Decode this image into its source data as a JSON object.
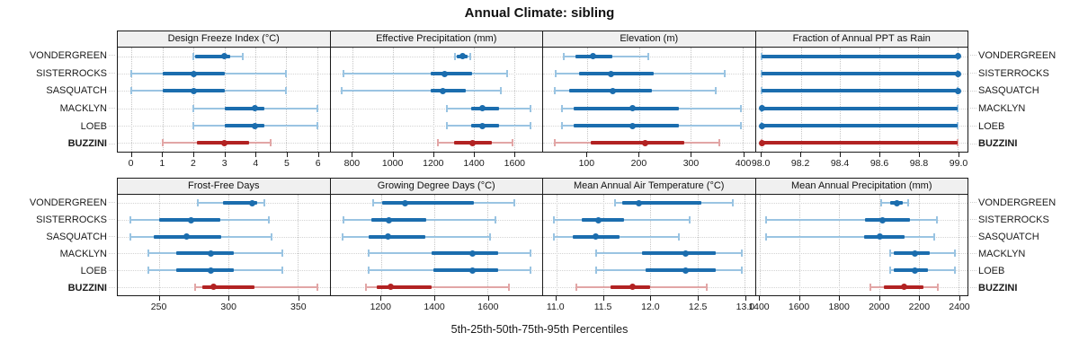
{
  "title": "Annual Climate: sibling",
  "caption": "5th-25th-50th-75th-95th Percentiles",
  "sites": [
    "VONDERGREEN",
    "SISTERROCKS",
    "SASQUATCH",
    "MACKLYN",
    "LOEB",
    "BUZZINI"
  ],
  "highlight_site": "BUZZINI",
  "colors": {
    "series_primary": "#1b6dae",
    "series_primary_light": "#9ac4e2",
    "highlight": "#b22222",
    "highlight_light": "#e2a6a6",
    "strip_bg": "#f0f0f0",
    "border": "#1a1a1a",
    "grid": "#c6c6c6"
  },
  "chart_data": [
    {
      "type": "interval",
      "row": 1,
      "title": "Design Freeze Index (°C)",
      "domain": [
        -0.45,
        6.4
      ],
      "ticks": [
        {
          "v": 0,
          "label": "0"
        },
        {
          "v": 1,
          "label": "1"
        },
        {
          "v": 2,
          "label": "2"
        },
        {
          "v": 3,
          "label": "3"
        },
        {
          "v": 4,
          "label": "4"
        },
        {
          "v": 5,
          "label": "5"
        },
        {
          "v": 6,
          "label": "6"
        }
      ],
      "percentiles": [
        "5th",
        "25th",
        "50th",
        "75th",
        "95th"
      ],
      "series": [
        {
          "name": "VONDERGREEN",
          "p": [
            2.0,
            2.05,
            3.0,
            3.2,
            3.6
          ]
        },
        {
          "name": "SISTERROCKS",
          "p": [
            0.0,
            1.0,
            2.0,
            3.0,
            5.0
          ]
        },
        {
          "name": "SASQUATCH",
          "p": [
            0.0,
            1.0,
            2.0,
            3.0,
            5.0
          ]
        },
        {
          "name": "MACKLYN",
          "p": [
            2.0,
            3.0,
            4.0,
            4.3,
            6.0
          ]
        },
        {
          "name": "LOEB",
          "p": [
            2.0,
            3.0,
            4.0,
            4.3,
            6.0
          ]
        },
        {
          "name": "BUZZINI",
          "p": [
            1.0,
            2.1,
            3.0,
            3.8,
            4.5
          ]
        }
      ]
    },
    {
      "type": "interval",
      "row": 1,
      "title": "Effective Precipitation (mm)",
      "domain": [
        690,
        1740
      ],
      "ticks": [
        {
          "v": 800,
          "label": "800"
        },
        {
          "v": 1000,
          "label": "1000"
        },
        {
          "v": 1200,
          "label": "1200"
        },
        {
          "v": 1400,
          "label": "1400"
        },
        {
          "v": 1600,
          "label": "1600"
        }
      ],
      "percentiles": [
        "5th",
        "25th",
        "50th",
        "75th",
        "95th"
      ],
      "series": [
        {
          "name": "VONDERGREEN",
          "p": [
            1307,
            1317,
            1347,
            1370,
            1383
          ]
        },
        {
          "name": "SISTERROCKS",
          "p": [
            756,
            1187,
            1257,
            1391,
            1564
          ]
        },
        {
          "name": "SASQUATCH",
          "p": [
            747,
            1187,
            1249,
            1360,
            1534
          ]
        },
        {
          "name": "MACKLYN",
          "p": [
            1267,
            1387,
            1444,
            1524,
            1680
          ]
        },
        {
          "name": "LOEB",
          "p": [
            1267,
            1387,
            1444,
            1524,
            1680
          ]
        },
        {
          "name": "BUZZINI",
          "p": [
            1222,
            1302,
            1396,
            1489,
            1591
          ]
        }
      ]
    },
    {
      "type": "interval",
      "row": 1,
      "title": "Elevation (m)",
      "domain": [
        15,
        424
      ],
      "ticks": [
        {
          "v": 100,
          "label": "100"
        },
        {
          "v": 200,
          "label": "200"
        },
        {
          "v": 300,
          "label": "300"
        },
        {
          "v": 400,
          "label": "400"
        }
      ],
      "percentiles": [
        "5th",
        "25th",
        "50th",
        "75th",
        "95th"
      ],
      "series": [
        {
          "name": "VONDERGREEN",
          "p": [
            55,
            78,
            112,
            148,
            218
          ]
        },
        {
          "name": "SISTERROCKS",
          "p": [
            40,
            85,
            146,
            228,
            366
          ]
        },
        {
          "name": "SASQUATCH",
          "p": [
            38,
            66,
            150,
            226,
            348
          ]
        },
        {
          "name": "MACKLYN",
          "p": [
            52,
            74,
            188,
            277,
            397
          ]
        },
        {
          "name": "LOEB",
          "p": [
            52,
            74,
            188,
            277,
            397
          ]
        },
        {
          "name": "BUZZINI",
          "p": [
            38,
            107,
            212,
            287,
            356
          ]
        }
      ]
    },
    {
      "type": "interval",
      "row": 1,
      "title": "Fraction of Annual PPT as Rain",
      "domain": [
        97.97,
        99.05
      ],
      "ticks": [
        {
          "v": 98.0,
          "label": "98.0"
        },
        {
          "v": 98.2,
          "label": "98.2"
        },
        {
          "v": 98.4,
          "label": "98.4"
        },
        {
          "v": 98.6,
          "label": "98.6"
        },
        {
          "v": 98.8,
          "label": "98.8"
        },
        {
          "v": 99.0,
          "label": "99.0"
        }
      ],
      "percentiles": [
        "5th",
        "25th",
        "50th",
        "75th",
        "95th"
      ],
      "series": [
        {
          "name": "VONDERGREEN",
          "p": [
            98.0,
            98.0,
            99.0,
            99.0,
            99.0
          ]
        },
        {
          "name": "SISTERROCKS",
          "p": [
            98.0,
            98.0,
            99.0,
            99.0,
            99.0
          ]
        },
        {
          "name": "SASQUATCH",
          "p": [
            98.0,
            98.0,
            99.0,
            99.0,
            99.0
          ]
        },
        {
          "name": "MACKLYN",
          "p": [
            98.0,
            98.0,
            98.0,
            99.0,
            99.0
          ]
        },
        {
          "name": "LOEB",
          "p": [
            98.0,
            98.0,
            98.0,
            99.0,
            99.0
          ]
        },
        {
          "name": "BUZZINI",
          "p": [
            98.0,
            98.0,
            98.0,
            99.0,
            99.0
          ]
        }
      ]
    },
    {
      "type": "interval",
      "row": 2,
      "title": "Frost-Free Days",
      "domain": [
        220,
        373
      ],
      "ticks": [
        {
          "v": 250,
          "label": "250"
        },
        {
          "v": 300,
          "label": "300"
        },
        {
          "v": 350,
          "label": "350"
        }
      ],
      "percentiles": [
        "5th",
        "25th",
        "50th",
        "75th",
        "95th"
      ],
      "series": [
        {
          "name": "VONDERGREEN",
          "p": [
            278,
            296,
            317,
            321,
            326
          ]
        },
        {
          "name": "SISTERROCKS",
          "p": [
            229,
            250,
            273,
            294,
            329
          ]
        },
        {
          "name": "SASQUATCH",
          "p": [
            229,
            246,
            270,
            295,
            331
          ]
        },
        {
          "name": "MACKLYN",
          "p": [
            242,
            262,
            287,
            304,
            339
          ]
        },
        {
          "name": "LOEB",
          "p": [
            242,
            262,
            287,
            304,
            339
          ]
        },
        {
          "name": "BUZZINI",
          "p": [
            276,
            281,
            289,
            319,
            364
          ]
        }
      ]
    },
    {
      "type": "interval",
      "row": 2,
      "title": "Growing Degree Days (°C)",
      "domain": [
        1010,
        1805
      ],
      "ticks": [
        {
          "v": 1200,
          "label": "1200"
        },
        {
          "v": 1400,
          "label": "1400"
        },
        {
          "v": 1600,
          "label": "1600"
        }
      ],
      "percentiles": [
        "5th",
        "25th",
        "50th",
        "75th",
        "95th"
      ],
      "series": [
        {
          "name": "VONDERGREEN",
          "p": [
            1170,
            1205,
            1290,
            1550,
            1700
          ]
        },
        {
          "name": "SISTERROCKS",
          "p": [
            1060,
            1165,
            1230,
            1370,
            1630
          ]
        },
        {
          "name": "SASQUATCH",
          "p": [
            1055,
            1155,
            1225,
            1365,
            1610
          ]
        },
        {
          "name": "MACKLYN",
          "p": [
            1155,
            1390,
            1545,
            1640,
            1760
          ]
        },
        {
          "name": "LOEB",
          "p": [
            1155,
            1395,
            1545,
            1640,
            1760
          ]
        },
        {
          "name": "BUZZINI",
          "p": [
            1145,
            1185,
            1235,
            1390,
            1680
          ]
        }
      ]
    },
    {
      "type": "interval",
      "row": 2,
      "title": "Mean Annual Air Temperature (°C)",
      "domain": [
        10.86,
        13.11
      ],
      "ticks": [
        {
          "v": 11.0,
          "label": "11.0"
        },
        {
          "v": 11.5,
          "label": "11.5"
        },
        {
          "v": 12.0,
          "label": "12.0"
        },
        {
          "v": 12.5,
          "label": "12.5"
        },
        {
          "v": 13.0,
          "label": "13.0"
        }
      ],
      "percentiles": [
        "5th",
        "25th",
        "50th",
        "75th",
        "95th"
      ],
      "series": [
        {
          "name": "VONDERGREEN",
          "p": [
            11.62,
            11.7,
            11.88,
            12.54,
            12.88
          ]
        },
        {
          "name": "SISTERROCKS",
          "p": [
            10.97,
            11.27,
            11.45,
            11.72,
            12.42
          ]
        },
        {
          "name": "SASQUATCH",
          "p": [
            10.97,
            11.18,
            11.42,
            11.67,
            12.3
          ]
        },
        {
          "name": "MACKLYN",
          "p": [
            11.42,
            11.91,
            12.37,
            12.69,
            12.97
          ]
        },
        {
          "name": "LOEB",
          "p": [
            11.42,
            11.95,
            12.37,
            12.69,
            12.97
          ]
        },
        {
          "name": "BUZZINI",
          "p": [
            11.21,
            11.58,
            11.81,
            12.0,
            12.6
          ]
        }
      ]
    },
    {
      "type": "interval",
      "row": 2,
      "title": "Mean Annual Precipitation (mm)",
      "domain": [
        1380,
        2445
      ],
      "ticks": [
        {
          "v": 1400,
          "label": "1400"
        },
        {
          "v": 1600,
          "label": "1600"
        },
        {
          "v": 1800,
          "label": "1800"
        },
        {
          "v": 2000,
          "label": "2000"
        },
        {
          "v": 2200,
          "label": "2200"
        },
        {
          "v": 2400,
          "label": "2400"
        }
      ],
      "percentiles": [
        "5th",
        "25th",
        "50th",
        "75th",
        "95th"
      ],
      "series": [
        {
          "name": "VONDERGREEN",
          "p": [
            2010,
            2058,
            2090,
            2120,
            2146
          ]
        },
        {
          "name": "SISTERROCKS",
          "p": [
            1432,
            1928,
            2018,
            2155,
            2292
          ]
        },
        {
          "name": "SASQUATCH",
          "p": [
            1432,
            1923,
            2005,
            2127,
            2278
          ]
        },
        {
          "name": "MACKLYN",
          "p": [
            2055,
            2075,
            2182,
            2255,
            2383
          ]
        },
        {
          "name": "LOEB",
          "p": [
            2055,
            2075,
            2182,
            2245,
            2383
          ]
        },
        {
          "name": "BUZZINI",
          "p": [
            1955,
            2023,
            2127,
            2223,
            2297
          ]
        }
      ]
    }
  ]
}
